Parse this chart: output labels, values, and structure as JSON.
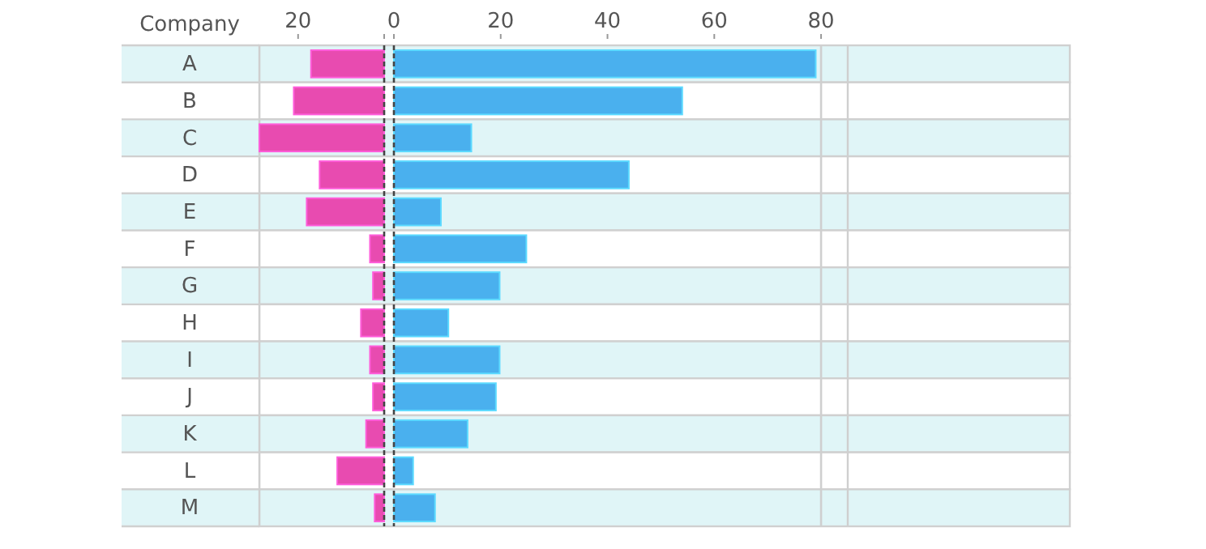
{
  "chart_data": [
    {
      "type": "bar",
      "orientation": "horizontal",
      "ylabel": "Company",
      "categories": [
        "A",
        "B",
        "C",
        "D",
        "E",
        "F",
        "G",
        "H",
        "I",
        "J",
        "K",
        "L",
        "M"
      ],
      "series": [
        {
          "color": "#e84bb0",
          "values": [
            17,
            21,
            29,
            15,
            18,
            3.3,
            2.6,
            5.4,
            3.3,
            2.6,
            4.2,
            10.9,
            2.2
          ]
        }
      ],
      "xlim": [
        29,
        0
      ],
      "xticks": [
        20,
        {
          "value": 0,
          "label": null
        }
      ],
      "ref_lines": [
        {
          "axis": "x",
          "value": 0,
          "line_style": "dashed"
        }
      ]
    },
    {
      "type": "bar",
      "orientation": "horizontal",
      "categories": [
        null,
        null,
        null,
        null,
        null,
        null,
        null,
        null,
        null,
        null,
        null,
        null,
        null
      ],
      "tick_labels": "x",
      "series": [
        {
          "color": "#4ab0ee",
          "values": [
            79,
            54,
            14.5,
            44,
            8.8,
            24.8,
            19.8,
            10.2,
            19.8,
            19.1,
            13.8,
            3.6,
            7.7
          ]
        }
      ],
      "xlim": [
        0,
        85
      ],
      "xticks": [
        0,
        20,
        40,
        60,
        80
      ],
      "ref_lines": [
        {
          "axis": "x",
          "value": 0,
          "line_style": "dashed"
        },
        {
          "axis": "x",
          "value": 80,
          "line_style": "solid"
        }
      ]
    }
  ]
}
